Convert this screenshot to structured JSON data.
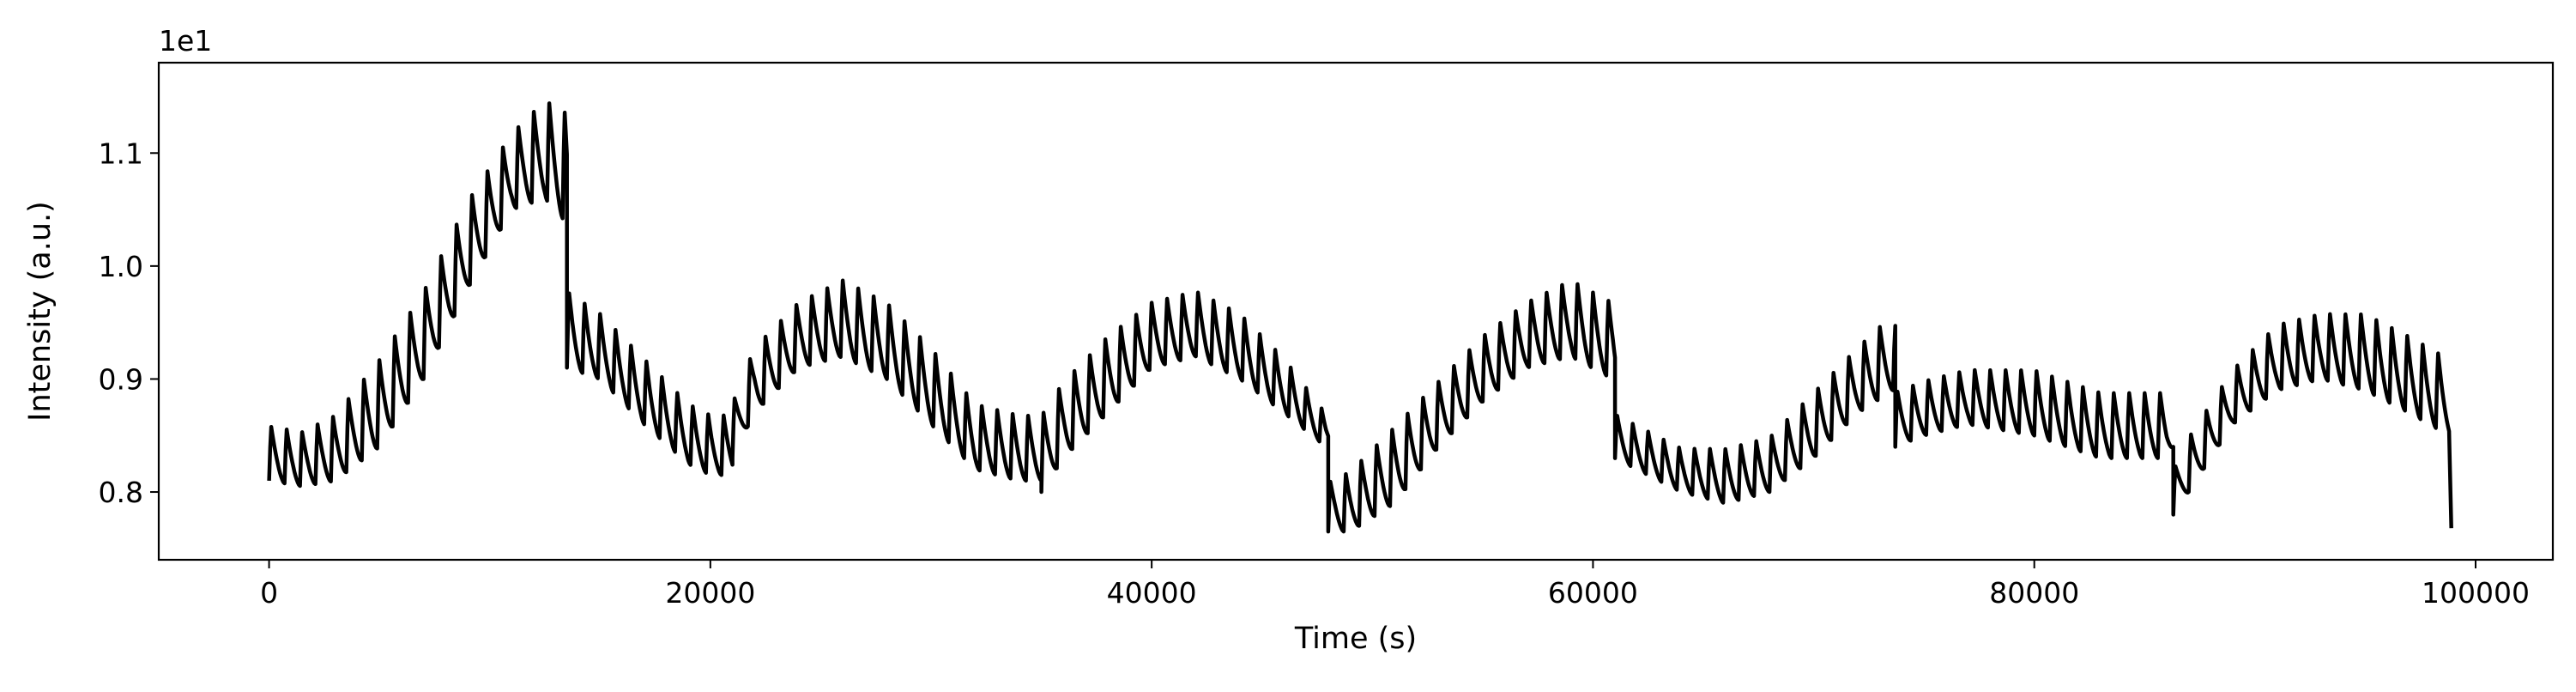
{
  "chart_data": {
    "type": "line",
    "title": "",
    "xlabel": "Time (s)",
    "ylabel": "Intensity (a.u.)",
    "y_offset_label": "1e1",
    "xlim": [
      -5000,
      103500
    ],
    "ylim": [
      0.74,
      1.18
    ],
    "x_ticks": [
      0,
      20000,
      40000,
      60000,
      80000,
      100000
    ],
    "x_tick_labels": [
      "0",
      "20000",
      "40000",
      "60000",
      "80000",
      "100000"
    ],
    "y_ticks": [
      0.8,
      0.9,
      1.0,
      1.1
    ],
    "y_tick_labels": [
      "0.8",
      "0.9",
      "1.0",
      "1.1"
    ],
    "grid": false,
    "line_color": "#000000",
    "oscillation_period_s": 700,
    "series": [
      {
        "segments": [
          {
            "x": [
              0,
              1500,
              3000,
              5000,
              7000,
              9000,
              11000,
              12500,
              13400,
              13500
            ],
            "lower": [
              0.81,
              0.805,
              0.81,
              0.84,
              0.9,
              0.98,
              1.05,
              1.06,
              1.04,
              1.02
            ],
            "upper": [
              0.86,
              0.855,
              0.87,
              0.92,
              0.98,
              1.06,
              1.12,
              1.15,
              1.14,
              1.13
            ]
          },
          {
            "x": [
              13500,
              15000,
              17000,
              19000,
              20000,
              21000
            ],
            "lower": [
              0.91,
              0.9,
              0.86,
              0.825,
              0.815,
              0.815
            ],
            "upper": [
              0.98,
              0.96,
              0.92,
              0.88,
              0.87,
              0.87
            ]
          },
          {
            "x": [
              21000,
              22000,
              24000,
              26000,
              28000,
              30000,
              32000,
              34000,
              35000
            ],
            "lower": [
              0.83,
              0.87,
              0.91,
              0.92,
              0.9,
              0.86,
              0.82,
              0.81,
              0.81
            ],
            "upper": [
              0.88,
              0.93,
              0.97,
              0.99,
              0.97,
              0.93,
              0.88,
              0.87,
              0.87
            ]
          },
          {
            "x": [
              35000,
              36000,
              38000,
              40000,
              42000,
              44000,
              46000,
              47900,
              48000
            ],
            "lower": [
              0.8,
              0.83,
              0.87,
              0.91,
              0.92,
              0.9,
              0.87,
              0.84,
              0.84
            ],
            "upper": [
              0.87,
              0.9,
              0.94,
              0.97,
              0.98,
              0.96,
              0.92,
              0.87,
              0.87
            ]
          },
          {
            "x": [
              48000,
              49000,
              51000,
              53000,
              55000,
              57000,
              59000,
              60900,
              61000
            ],
            "lower": [
              0.765,
              0.765,
              0.79,
              0.84,
              0.88,
              0.91,
              0.92,
              0.9,
              0.9
            ],
            "upper": [
              0.81,
              0.82,
              0.86,
              0.9,
              0.94,
              0.97,
              0.99,
              0.97,
              0.96
            ]
          },
          {
            "x": [
              61000,
              62000,
              64000,
              66000,
              68000,
              70000,
              72000,
              73600,
              73700
            ],
            "lower": [
              0.83,
              0.82,
              0.8,
              0.79,
              0.8,
              0.83,
              0.87,
              0.89,
              0.88
            ],
            "upper": [
              0.87,
              0.86,
              0.84,
              0.84,
              0.85,
              0.89,
              0.93,
              0.96,
              0.95
            ]
          },
          {
            "x": [
              73700,
              75000,
              77000,
              80000,
              83000,
              86000,
              86300
            ],
            "lower": [
              0.84,
              0.85,
              0.86,
              0.85,
              0.83,
              0.83,
              0.84
            ],
            "upper": [
              0.89,
              0.9,
              0.91,
              0.91,
              0.89,
              0.89,
              0.9
            ]
          },
          {
            "x": [
              86300,
              87000,
              89000,
              91000,
              93000,
              95000,
              97000,
              98800
            ],
            "lower": [
              0.78,
              0.8,
              0.86,
              0.89,
              0.9,
              0.89,
              0.87,
              0.85
            ],
            "upper": [
              0.82,
              0.85,
              0.91,
              0.95,
              0.96,
              0.96,
              0.94,
              0.92
            ]
          }
        ],
        "final_drop": {
          "x": 98900,
          "y": 0.768
        }
      }
    ]
  }
}
